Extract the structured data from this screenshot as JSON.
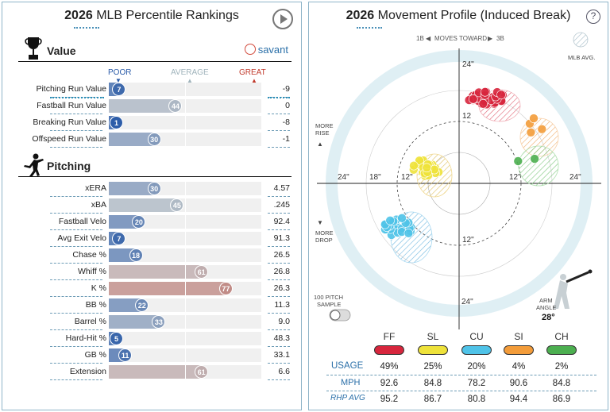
{
  "left": {
    "title_year": "2026",
    "title_text": "MLB Percentile Rankings",
    "value_section": "Value",
    "pitching_section": "Pitching",
    "savant_logo": "savant",
    "scale": {
      "poor": "POOR",
      "average": "AVERAGE",
      "great": "GREAT"
    },
    "colors": {
      "poor": "#2a5ba8",
      "average": "#b7c9d0",
      "great": "#c0392b"
    },
    "value_rows": [
      {
        "label": "Pitching Run Value",
        "percentile": 7,
        "value": "-9"
      },
      {
        "label": "Fastball Run Value",
        "percentile": 44,
        "value": "0"
      },
      {
        "label": "Breaking Run Value",
        "percentile": 1,
        "value": "-8"
      },
      {
        "label": "Offspeed Run Value",
        "percentile": 30,
        "value": "-1"
      }
    ],
    "pitching_rows": [
      {
        "label": "xERA",
        "percentile": 30,
        "value": "4.57"
      },
      {
        "label": "xBA",
        "percentile": 45,
        "value": ".245"
      },
      {
        "label": "Fastball Velo",
        "percentile": 20,
        "value": "92.4"
      },
      {
        "label": "Avg Exit Velo",
        "percentile": 7,
        "value": "91.3"
      },
      {
        "label": "Chase %",
        "percentile": 18,
        "value": "26.5"
      },
      {
        "label": "Whiff %",
        "percentile": 61,
        "value": "26.8"
      },
      {
        "label": "K %",
        "percentile": 77,
        "value": "26.3"
      },
      {
        "label": "BB %",
        "percentile": 22,
        "value": "11.3"
      },
      {
        "label": "Barrel %",
        "percentile": 33,
        "value": "9.0"
      },
      {
        "label": "Hard-Hit %",
        "percentile": 5,
        "value": "48.3"
      },
      {
        "label": "GB %",
        "percentile": 11,
        "value": "33.1"
      },
      {
        "label": "Extension",
        "percentile": 61,
        "value": "6.6"
      }
    ]
  },
  "right": {
    "title_year": "2026",
    "title_text": "Movement Profile (Induced Break)",
    "help_icon": "?",
    "moves_toward": "MOVES TOWARD",
    "dir_left": "1B",
    "dir_right": "3B",
    "mlb_avg": "MLB AVG.",
    "more_rise": [
      "MORE",
      "RISE"
    ],
    "more_drop": [
      "MORE",
      "DROP"
    ],
    "sample_toggle": [
      "100 PITCH",
      "SAMPLE"
    ],
    "arm_angle_label": [
      "ARM",
      "ANGLE"
    ],
    "arm_angle_value": "28°",
    "ring_labels": {
      "inner": "12\"",
      "outer": "24\"",
      "left_outer": "24\"",
      "left_mid": "18\"",
      "left_inner": "12\"",
      "right_inner": "12\"",
      "right_outer": "24\"",
      "bottom_inner": "12\"",
      "bottom_outer": "24\"",
      "top_outer": "24\"",
      "top_inner": "12"
    },
    "row_headers": {
      "usage": "USAGE",
      "mph": "MPH",
      "rhp_avg": "RHP AVG"
    },
    "pitches": [
      {
        "code": "FF",
        "color": "#d7263d",
        "usage": "49%",
        "mph": "92.6",
        "rhp_avg": "95.2"
      },
      {
        "code": "SL",
        "color": "#eee23a",
        "usage": "25%",
        "mph": "84.8",
        "rhp_avg": "86.7"
      },
      {
        "code": "CU",
        "color": "#4fc3e8",
        "usage": "20%",
        "mph": "78.2",
        "rhp_avg": "80.8"
      },
      {
        "code": "SI",
        "color": "#f39c3a",
        "usage": "4%",
        "mph": "90.6",
        "rhp_avg": "94.4"
      },
      {
        "code": "CH",
        "color": "#4caf50",
        "usage": "2%",
        "mph": "84.8",
        "rhp_avg": "86.9"
      }
    ]
  }
}
